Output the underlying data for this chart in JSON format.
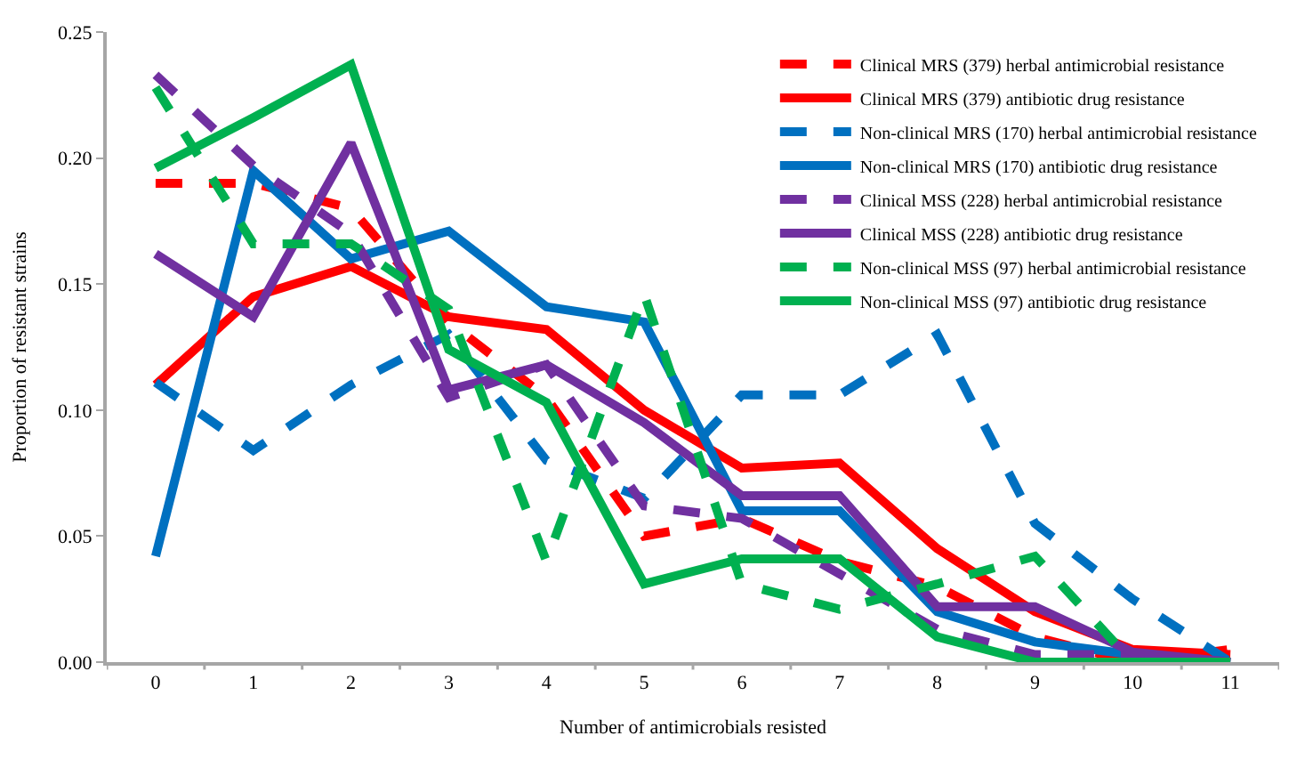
{
  "chart_data": {
    "type": "line",
    "xlabel": "Number of antimicrobials resisted",
    "ylabel": "Proportion of resistant strains",
    "categories": [
      "0",
      "1",
      "2",
      "3",
      "4",
      "5",
      "6",
      "7",
      "8",
      "9",
      "10",
      "11"
    ],
    "ylim": [
      0,
      0.25
    ],
    "yticks": [
      {
        "value": 0,
        "label": "0.00"
      },
      {
        "value": 0.05,
        "label": "0.05"
      },
      {
        "value": 0.1,
        "label": "0.10"
      },
      {
        "value": 0.15,
        "label": "0.15"
      },
      {
        "value": 0.2,
        "label": "0.20"
      },
      {
        "value": 0.25,
        "label": "0.25"
      }
    ],
    "grid": false,
    "legend": "top right",
    "marker": "none",
    "series": [
      {
        "name": "Clinical MRS (379) herbal antimicrobial resistance",
        "color": "#ff0000",
        "line_style": "dashed",
        "values": [
          0.19,
          0.19,
          0.18,
          0.135,
          0.105,
          0.05,
          0.057,
          0.04,
          0.03,
          0.01,
          0.0,
          0.005
        ]
      },
      {
        "name": "Clinical MRS (379) antibiotic drug resistance",
        "color": "#ff0000",
        "line_style": "solid",
        "values": [
          0.11,
          0.145,
          0.157,
          0.137,
          0.132,
          0.1,
          0.077,
          0.079,
          0.045,
          0.02,
          0.005,
          0.003
        ]
      },
      {
        "name": "Non-clinical MRS (170) herbal antimicrobial resistance",
        "color": "#0070c0",
        "line_style": "dashed",
        "values": [
          0.111,
          0.084,
          0.11,
          0.13,
          0.08,
          0.065,
          0.106,
          0.106,
          0.13,
          0.055,
          0.025,
          0.0
        ]
      },
      {
        "name": "Non-clinical MRS (170) antibiotic drug resistance",
        "color": "#0070c0",
        "line_style": "solid",
        "values": [
          0.042,
          0.195,
          0.16,
          0.171,
          0.141,
          0.135,
          0.06,
          0.06,
          0.02,
          0.008,
          0.003,
          0.0
        ]
      },
      {
        "name": "Clinical MSS (228) herbal antimicrobial resistance",
        "color": "#7030a0",
        "line_style": "dashed",
        "values": [
          0.233,
          0.197,
          0.17,
          0.105,
          0.118,
          0.062,
          0.057,
          0.035,
          0.013,
          0.003,
          0.003,
          0.0
        ]
      },
      {
        "name": "Clinical MSS (228) antibiotic drug resistance",
        "color": "#7030a0",
        "line_style": "solid",
        "values": [
          0.162,
          0.137,
          0.206,
          0.108,
          0.118,
          0.095,
          0.066,
          0.066,
          0.022,
          0.022,
          0.004,
          0.0
        ]
      },
      {
        "name": "Non-clinical MSS (97) herbal antimicrobial resistance",
        "color": "#00b050",
        "line_style": "dashed",
        "values": [
          0.228,
          0.166,
          0.166,
          0.14,
          0.04,
          0.146,
          0.031,
          0.021,
          0.031,
          0.042,
          0.0,
          0.0
        ]
      },
      {
        "name": "Non-clinical MSS (97) antibiotic drug resistance",
        "color": "#00b050",
        "line_style": "solid",
        "values": [
          0.196,
          0.216,
          0.237,
          0.124,
          0.103,
          0.031,
          0.041,
          0.041,
          0.01,
          0.0,
          0.0,
          0.0
        ]
      }
    ]
  }
}
